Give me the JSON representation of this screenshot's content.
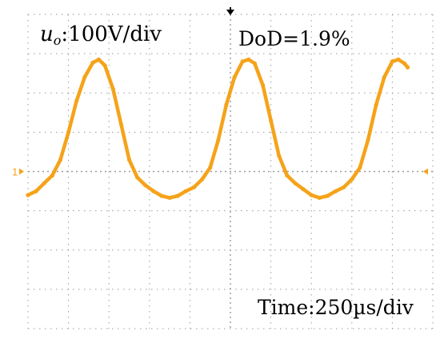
{
  "channel_label": {
    "symbol": "u",
    "subscript": "o",
    "text": ":100V/div"
  },
  "dod_label": "DoD=1.9%",
  "time_label": "Time:250µs/div",
  "channel_marker": "1",
  "trace_color": "#F5A31A",
  "grid_color": "#9a9a9a",
  "chart_data": {
    "type": "line",
    "title": "",
    "xlabel": "",
    "ylabel": "",
    "x_units": "div",
    "y_units": "div",
    "xlim": [
      0,
      10
    ],
    "ylim": [
      -4,
      4
    ],
    "grid": true,
    "series": [
      {
        "color": "#F5A31A",
        "points": [
          [
            0.0,
            -0.6
          ],
          [
            0.2,
            -0.5
          ],
          [
            0.4,
            -0.3
          ],
          [
            0.6,
            -0.1
          ],
          [
            0.8,
            0.3
          ],
          [
            1.0,
            1.0
          ],
          [
            1.2,
            1.8
          ],
          [
            1.4,
            2.4
          ],
          [
            1.6,
            2.77
          ],
          [
            1.75,
            2.85
          ],
          [
            1.9,
            2.7
          ],
          [
            2.1,
            2.1
          ],
          [
            2.3,
            1.2
          ],
          [
            2.5,
            0.3
          ],
          [
            2.7,
            -0.15
          ],
          [
            2.9,
            -0.35
          ],
          [
            3.1,
            -0.5
          ],
          [
            3.3,
            -0.62
          ],
          [
            3.5,
            -0.67
          ],
          [
            3.7,
            -0.62
          ],
          [
            3.9,
            -0.5
          ],
          [
            4.1,
            -0.4
          ],
          [
            4.3,
            -0.2
          ],
          [
            4.5,
            0.1
          ],
          [
            4.7,
            0.8
          ],
          [
            4.9,
            1.7
          ],
          [
            5.1,
            2.4
          ],
          [
            5.3,
            2.8
          ],
          [
            5.45,
            2.85
          ],
          [
            5.6,
            2.75
          ],
          [
            5.8,
            2.2
          ],
          [
            6.0,
            1.3
          ],
          [
            6.2,
            0.4
          ],
          [
            6.4,
            -0.1
          ],
          [
            6.6,
            -0.3
          ],
          [
            6.8,
            -0.45
          ],
          [
            7.0,
            -0.6
          ],
          [
            7.2,
            -0.67
          ],
          [
            7.4,
            -0.62
          ],
          [
            7.6,
            -0.5
          ],
          [
            7.8,
            -0.4
          ],
          [
            8.0,
            -0.2
          ],
          [
            8.2,
            0.1
          ],
          [
            8.4,
            0.8
          ],
          [
            8.6,
            1.7
          ],
          [
            8.8,
            2.4
          ],
          [
            9.0,
            2.8
          ],
          [
            9.15,
            2.85
          ],
          [
            9.3,
            2.75
          ],
          [
            9.38,
            2.65
          ]
        ]
      }
    ]
  }
}
